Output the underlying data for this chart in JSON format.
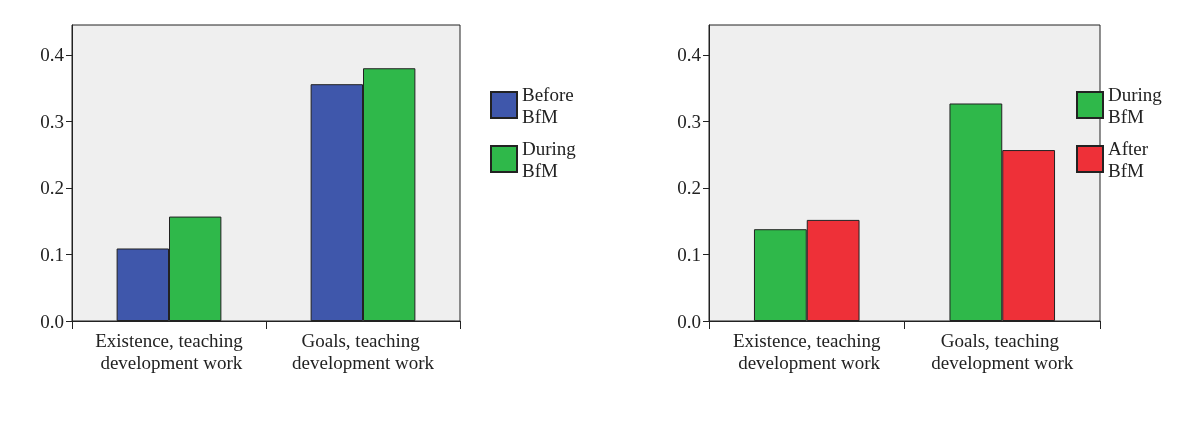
{
  "chart_data": [
    {
      "type": "bar",
      "categories": [
        "Existence, teaching development work",
        "Goals, teaching development work"
      ],
      "series": [
        {
          "name": "Before BfM",
          "color": "#3f57ab",
          "values": [
            0.109,
            0.356
          ]
        },
        {
          "name": "During BfM",
          "color": "#2fb84a",
          "values": [
            0.157,
            0.38
          ]
        }
      ],
      "ylim": [
        0,
        0.445
      ],
      "yticks": [
        {
          "value": 0,
          "label": "0.0"
        },
        {
          "value": 0.1,
          "label": "0.1"
        },
        {
          "value": 0.2,
          "label": "0.2"
        },
        {
          "value": 0.3,
          "label": "0.3"
        },
        {
          "value": 0.4,
          "label": "0.4"
        }
      ],
      "legend": "right"
    },
    {
      "type": "bar",
      "categories": [
        "Existence, teaching development work",
        "Goals, teaching development work"
      ],
      "series": [
        {
          "name": "During BfM",
          "color": "#2fb84a",
          "values": [
            0.138,
            0.327
          ]
        },
        {
          "name": "After BfM",
          "color": "#ee3038",
          "values": [
            0.152,
            0.257
          ]
        }
      ],
      "ylim": [
        0,
        0.445
      ],
      "yticks": [
        {
          "value": 0,
          "label": "0.0"
        },
        {
          "value": 0.1,
          "label": "0.1"
        },
        {
          "value": 0.2,
          "label": "0.2"
        },
        {
          "value": 0.3,
          "label": "0.3"
        },
        {
          "value": 0.4,
          "label": "0.4"
        }
      ],
      "legend": "right"
    }
  ]
}
